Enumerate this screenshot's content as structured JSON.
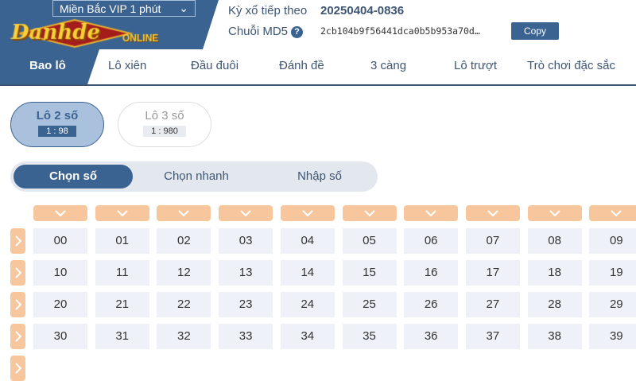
{
  "header": {
    "region_select": "Miền Bắc VIP 1 phút",
    "next_draw_label": "Kỳ xổ tiếp theo",
    "next_draw_value": "20250404-0836",
    "md5_label": "Chuỗi MD5",
    "md5_value": "2cb104b9f56441dca0b5b953a70d…",
    "help_icon": "?",
    "copy_label": "Copy"
  },
  "logo": {
    "text": "Danhde",
    "sub": "ONLINE"
  },
  "nav": {
    "items": [
      "Bao lô",
      "Lô xiên",
      "Đầu đuôi",
      "Đánh đề",
      "3 càng",
      "Lô trượt",
      "Trò chơi đặc sắc"
    ],
    "active": 0
  },
  "bet_types": [
    {
      "name": "Lô 2 số",
      "odds": "1 : 98",
      "selected": true
    },
    {
      "name": "Lô 3 số",
      "odds": "1 : 980",
      "selected": false
    }
  ],
  "modes": {
    "items": [
      "Chọn số",
      "Chọn nhanh",
      "Nhập số"
    ],
    "active": 0
  },
  "grid": {
    "numbers": [
      "00",
      "01",
      "02",
      "03",
      "04",
      "05",
      "06",
      "07",
      "08",
      "09",
      "10",
      "11",
      "12",
      "13",
      "14",
      "15",
      "16",
      "17",
      "18",
      "19",
      "20",
      "21",
      "22",
      "23",
      "24",
      "25",
      "26",
      "27",
      "28",
      "29",
      "30",
      "31",
      "32",
      "33",
      "34",
      "35",
      "36",
      "37",
      "38",
      "39"
    ]
  },
  "colors": {
    "primary": "#3b6392",
    "accent": "#f8c69c",
    "cell": "#eef2f8"
  }
}
